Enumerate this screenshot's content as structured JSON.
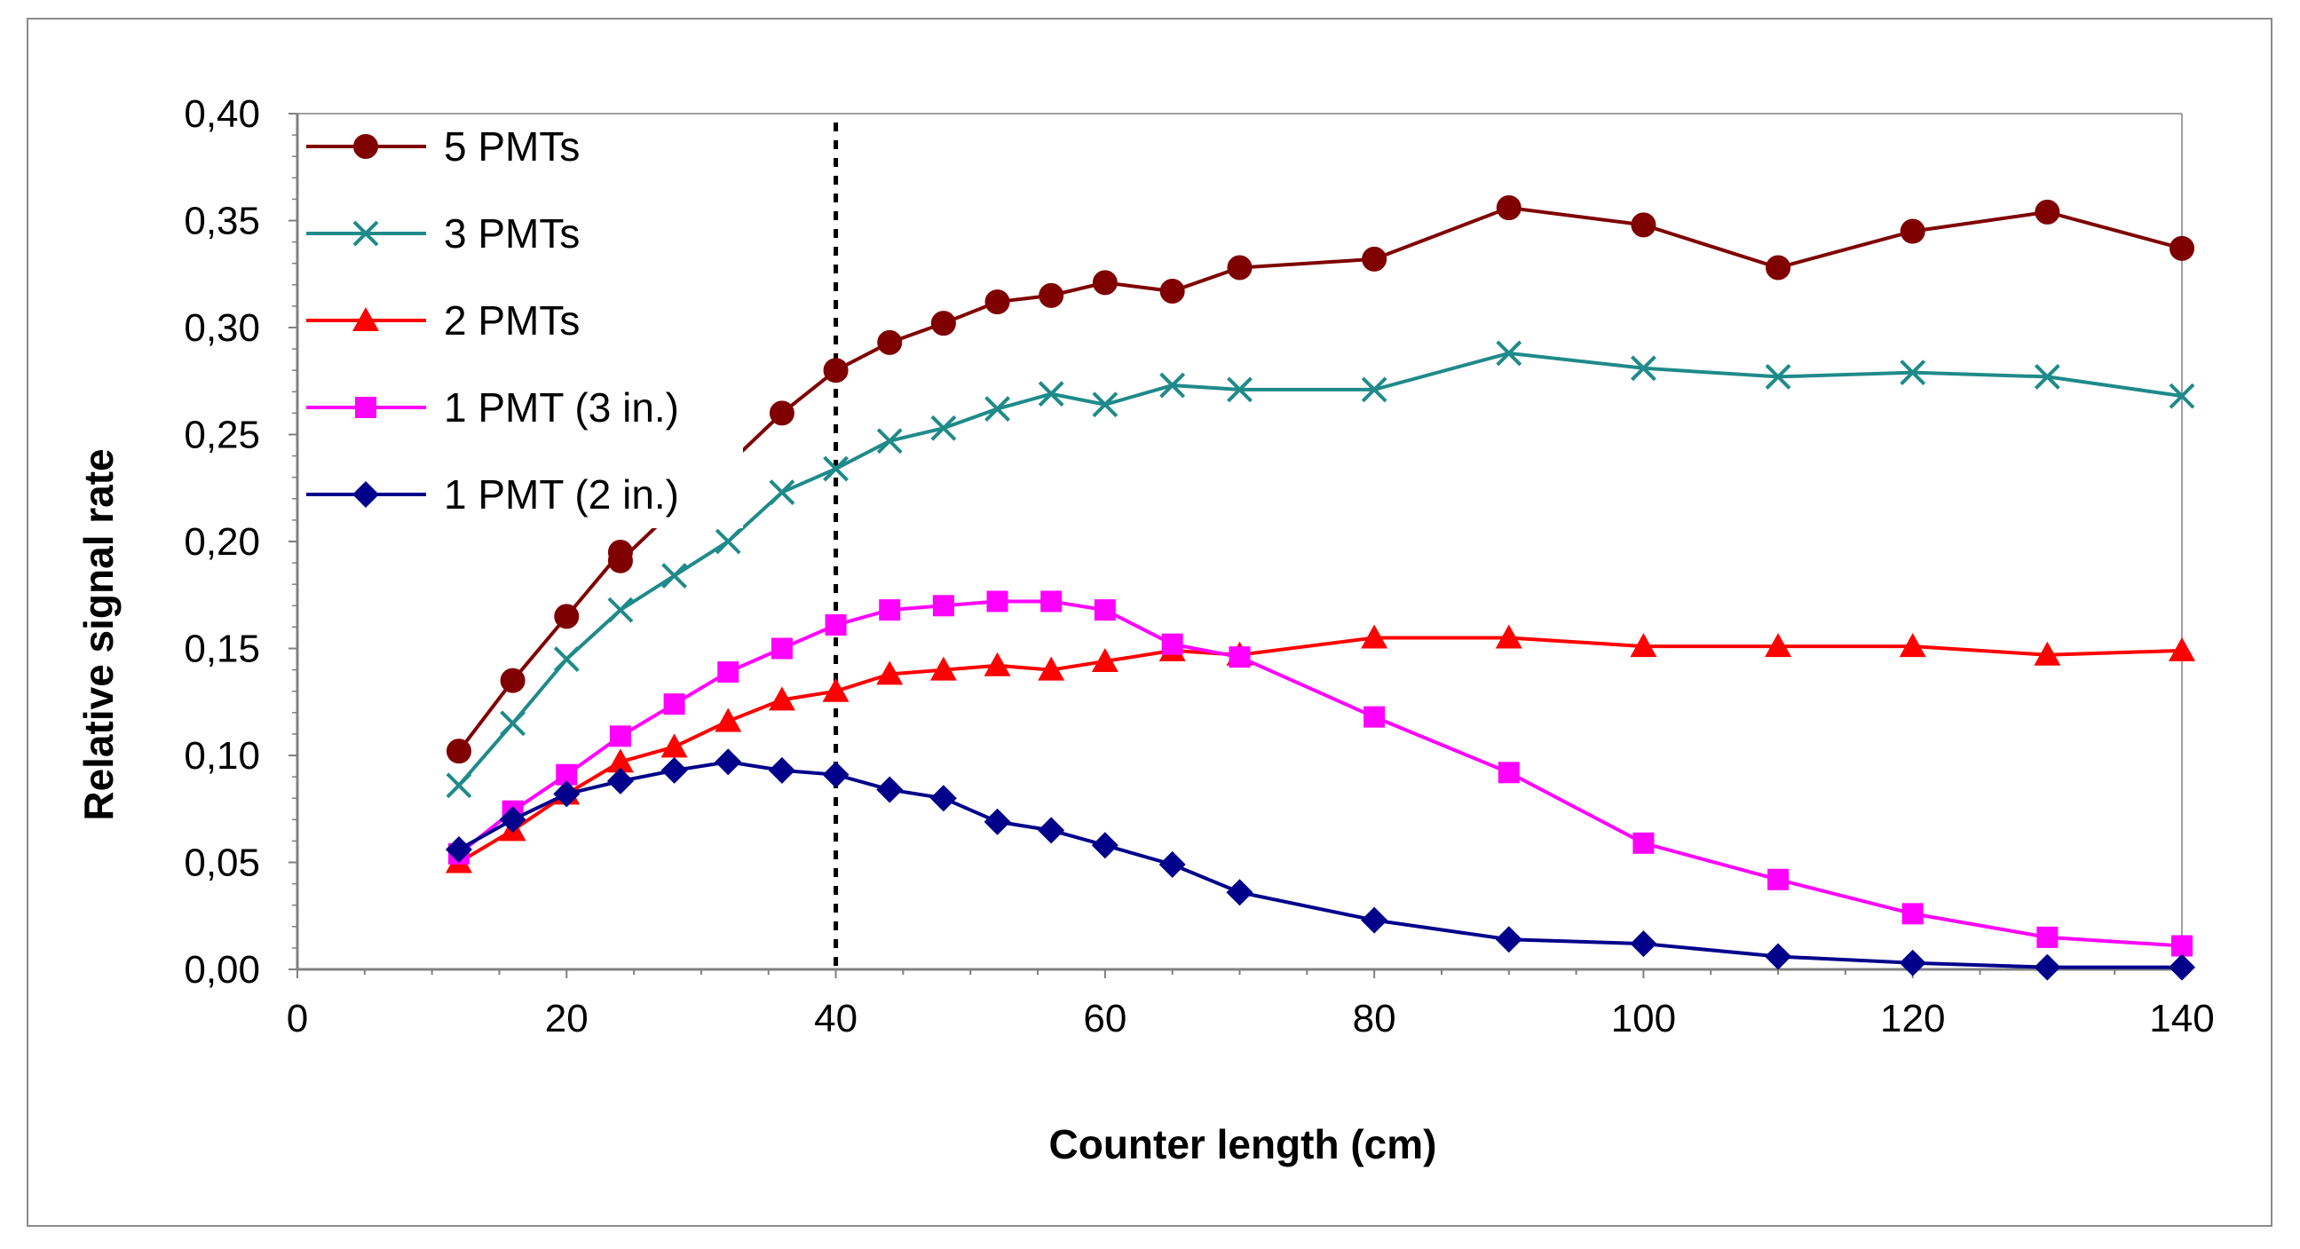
{
  "chart_data": {
    "type": "line",
    "title": "",
    "xlabel": "Counter length (cm)",
    "ylabel": "Relative signal rate",
    "xlim": [
      0,
      140
    ],
    "ylim": [
      0,
      0.4
    ],
    "x_ticks": [
      0,
      20,
      40,
      60,
      80,
      100,
      120,
      140
    ],
    "x_tick_labels": [
      "0",
      "20",
      "40",
      "60",
      "80",
      "100",
      "120",
      "140"
    ],
    "y_ticks": [
      0,
      0.05,
      0.1,
      0.15,
      0.2,
      0.25,
      0.3,
      0.35,
      0.4
    ],
    "y_tick_labels": [
      "0,00",
      "0,05",
      "0,10",
      "0,15",
      "0,20",
      "0,25",
      "0,30",
      "0,35",
      "0,40"
    ],
    "grid": false,
    "legend_position": "top-left",
    "vline_x": 40,
    "x": [
      12,
      16,
      20,
      24,
      28,
      32,
      36,
      40,
      44,
      48,
      52,
      56,
      60,
      65,
      70,
      80,
      90,
      100,
      110,
      120,
      130,
      140
    ],
    "series": [
      {
        "name": "5 PMTs",
        "color": "#800000",
        "marker": "circle",
        "x": [
          12,
          16,
          20,
          24,
          24,
          28,
          32,
          36,
          40,
          44,
          48,
          52,
          56,
          60,
          65,
          70,
          80,
          90,
          100,
          110,
          120,
          130,
          140
        ],
        "values": [
          0.102,
          0.135,
          0.165,
          0.195,
          0.191,
          0.215,
          0.236,
          0.26,
          0.28,
          0.293,
          0.302,
          0.312,
          0.315,
          0.321,
          0.317,
          0.328,
          0.332,
          0.356,
          0.348,
          0.328,
          0.345,
          0.354,
          0.337
        ]
      },
      {
        "name": "3 PMTs",
        "color": "#1f8a8a",
        "marker": "x",
        "x": [
          12,
          16,
          20,
          24,
          28,
          32,
          36,
          40,
          44,
          48,
          52,
          56,
          60,
          65,
          70,
          80,
          90,
          100,
          110,
          120,
          130,
          140
        ],
        "values": [
          0.086,
          0.115,
          0.145,
          0.168,
          0.184,
          0.2,
          0.223,
          0.234,
          0.247,
          0.253,
          0.262,
          0.269,
          0.264,
          0.273,
          0.271,
          0.271,
          0.288,
          0.281,
          0.277,
          0.279,
          0.277,
          0.268
        ]
      },
      {
        "name": "2 PMTs",
        "color": "#ff0000",
        "marker": "triangle",
        "x": [
          12,
          16,
          20,
          24,
          28,
          32,
          36,
          40,
          44,
          48,
          52,
          56,
          60,
          65,
          70,
          80,
          90,
          100,
          110,
          120,
          130,
          140
        ],
        "values": [
          0.05,
          0.065,
          0.082,
          0.097,
          0.104,
          0.116,
          0.126,
          0.13,
          0.138,
          0.14,
          0.142,
          0.14,
          0.144,
          0.149,
          0.147,
          0.155,
          0.155,
          0.151,
          0.151,
          0.151,
          0.147,
          0.149
        ]
      },
      {
        "name": "1 PMT (3 in.)",
        "color": "#ff00ff",
        "marker": "square",
        "x": [
          12,
          16,
          20,
          24,
          28,
          32,
          36,
          40,
          44,
          48,
          52,
          56,
          60,
          65,
          70,
          80,
          90,
          100,
          110,
          120,
          130,
          140
        ],
        "values": [
          0.054,
          0.074,
          0.091,
          0.109,
          0.124,
          0.139,
          0.15,
          0.161,
          0.168,
          0.17,
          0.172,
          0.172,
          0.168,
          0.152,
          0.146,
          0.118,
          0.092,
          0.059,
          0.042,
          0.026,
          0.015,
          0.011
        ]
      },
      {
        "name": "1 PMT (2 in.)",
        "color": "#00008b",
        "marker": "diamond",
        "x": [
          12,
          16,
          20,
          24,
          28,
          32,
          36,
          40,
          44,
          48,
          52,
          56,
          60,
          65,
          70,
          80,
          90,
          100,
          110,
          120,
          130,
          140
        ],
        "values": [
          0.056,
          0.07,
          0.082,
          0.088,
          0.093,
          0.097,
          0.093,
          0.091,
          0.084,
          0.08,
          0.069,
          0.065,
          0.058,
          0.049,
          0.036,
          0.023,
          0.014,
          0.012,
          0.006,
          0.003,
          0.001,
          0.001
        ]
      }
    ]
  }
}
